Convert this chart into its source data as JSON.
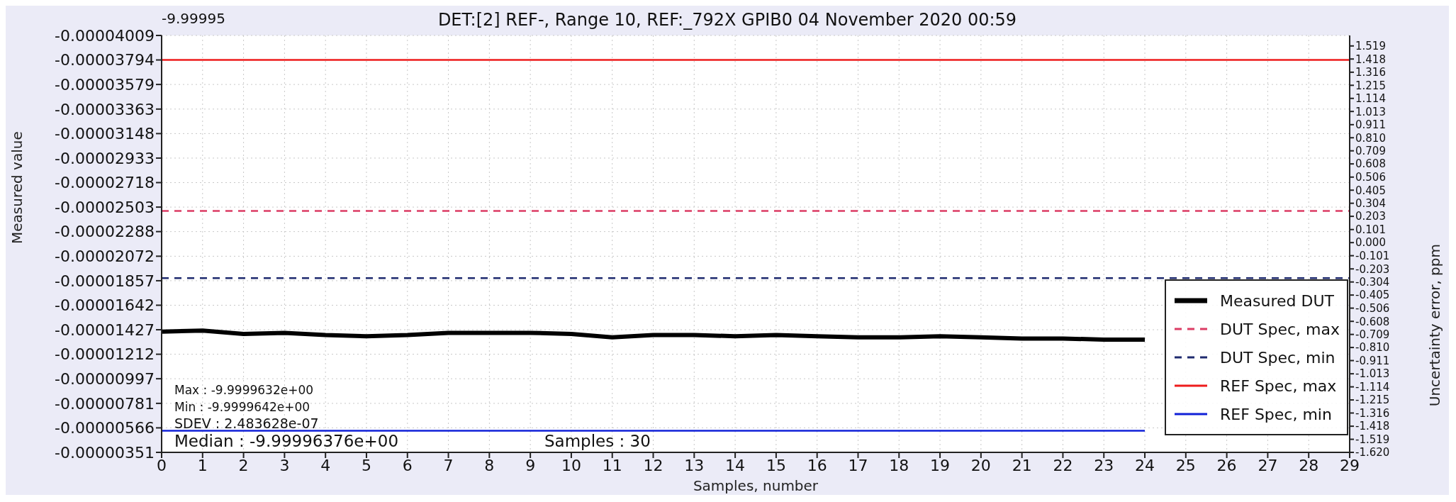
{
  "chart_data": {
    "type": "line",
    "title": "DET:[2] REF-, Range   10, REF:_792X GPIB0 04 November 2020 00:59",
    "xlabel": "Samples, number",
    "ylabel": "Measured value",
    "y2label": "Uncertainty error, ppm",
    "annotations": [
      "-9.99995",
      "Max : -9.9999632e+00",
      "Min : -9.9999642e+00",
      "SDEV : 2.483628e-07",
      "Median : -9.99996376e+00",
      "Samples : 30"
    ],
    "x": [
      0,
      1,
      2,
      3,
      4,
      5,
      6,
      7,
      8,
      9,
      10,
      11,
      12,
      13,
      14,
      15,
      16,
      17,
      18,
      19,
      20,
      21,
      22,
      23,
      24,
      25,
      26,
      27,
      28,
      29
    ],
    "series": [
      {
        "name": "Measured DUT",
        "color": "#000000",
        "line_style": "solid",
        "values": [
          -1.41e-05,
          -1.42e-05,
          -1.39e-05,
          -1.4e-05,
          -1.38e-05,
          -1.37e-05,
          -1.38e-05,
          -1.4e-05,
          -1.4e-05,
          -1.4e-05,
          -1.39e-05,
          -1.36e-05,
          -1.38e-05,
          -1.38e-05,
          -1.37e-05,
          -1.38e-05,
          -1.37e-05,
          -1.36e-05,
          -1.36e-05,
          -1.37e-05,
          -1.36e-05,
          -1.35e-05,
          -1.35e-05,
          -1.34e-05,
          -1.34e-05,
          null,
          null,
          null,
          null,
          null
        ]
      },
      {
        "name": "DUT Spec, max",
        "color": "#dc3c64",
        "line_style": "dashed",
        "values": [
          -2.47e-05,
          -2.47e-05,
          -2.47e-05,
          -2.47e-05,
          -2.47e-05,
          -2.47e-05,
          -2.47e-05,
          -2.47e-05,
          -2.47e-05,
          -2.47e-05,
          -2.47e-05,
          -2.47e-05,
          -2.47e-05,
          -2.47e-05,
          -2.47e-05,
          -2.47e-05,
          -2.47e-05,
          -2.47e-05,
          -2.47e-05,
          -2.47e-05,
          -2.47e-05,
          -2.47e-05,
          -2.47e-05,
          -2.47e-05,
          -2.47e-05,
          -2.47e-05,
          -2.47e-05,
          -2.47e-05,
          -2.47e-05,
          -2.47e-05
        ]
      },
      {
        "name": "DUT Spec, min",
        "color": "#1e2a6e",
        "line_style": "dashed",
        "values": [
          -1.88e-05,
          -1.88e-05,
          -1.88e-05,
          -1.88e-05,
          -1.88e-05,
          -1.88e-05,
          -1.88e-05,
          -1.88e-05,
          -1.88e-05,
          -1.88e-05,
          -1.88e-05,
          -1.88e-05,
          -1.88e-05,
          -1.88e-05,
          -1.88e-05,
          -1.88e-05,
          -1.88e-05,
          -1.88e-05,
          -1.88e-05,
          -1.88e-05,
          -1.88e-05,
          -1.88e-05,
          -1.88e-05,
          -1.88e-05,
          -1.88e-05,
          -1.88e-05,
          -1.88e-05,
          -1.88e-05,
          -1.88e-05,
          -1.88e-05
        ]
      },
      {
        "name": "REF Spec, max",
        "color": "#ee1c1c",
        "line_style": "solid",
        "values": [
          -3.794e-05,
          -3.794e-05,
          -3.794e-05,
          -3.794e-05,
          -3.794e-05,
          -3.794e-05,
          -3.794e-05,
          -3.794e-05,
          -3.794e-05,
          -3.794e-05,
          -3.794e-05,
          -3.794e-05,
          -3.794e-05,
          -3.794e-05,
          -3.794e-05,
          -3.794e-05,
          -3.794e-05,
          -3.794e-05,
          -3.794e-05,
          -3.794e-05,
          -3.794e-05,
          -3.794e-05,
          -3.794e-05,
          -3.794e-05,
          -3.794e-05,
          -3.794e-05,
          -3.794e-05,
          -3.794e-05,
          -3.794e-05,
          -3.794e-05
        ]
      },
      {
        "name": "REF Spec, min",
        "color": "#1020d8",
        "line_style": "solid",
        "values": [
          -5.4e-06,
          -5.4e-06,
          -5.4e-06,
          -5.4e-06,
          -5.4e-06,
          -5.4e-06,
          -5.4e-06,
          -5.4e-06,
          -5.4e-06,
          -5.4e-06,
          -5.4e-06,
          -5.4e-06,
          -5.4e-06,
          -5.4e-06,
          -5.4e-06,
          -5.4e-06,
          -5.4e-06,
          -5.4e-06,
          -5.4e-06,
          -5.4e-06,
          -5.4e-06,
          -5.4e-06,
          -5.4e-06,
          -5.4e-06,
          -5.4e-06,
          null,
          null,
          null,
          null,
          null
        ]
      }
    ],
    "xlim": [
      0,
      29
    ],
    "xticks": [
      0,
      1,
      2,
      3,
      4,
      5,
      6,
      7,
      8,
      9,
      10,
      11,
      12,
      13,
      14,
      15,
      16,
      17,
      18,
      19,
      20,
      21,
      22,
      23,
      24,
      25,
      26,
      27,
      28,
      29
    ],
    "ylim": [
      -3.51e-06,
      -4.009e-05
    ],
    "yticks": [
      {
        "value": -4.009e-05,
        "label": "-0.00004009"
      },
      {
        "value": -3.794e-05,
        "label": "-0.00003794"
      },
      {
        "value": -3.579e-05,
        "label": "-0.00003579"
      },
      {
        "value": -3.363e-05,
        "label": "-0.00003363"
      },
      {
        "value": -3.148e-05,
        "label": "-0.00003148"
      },
      {
        "value": -2.933e-05,
        "label": "-0.00002933"
      },
      {
        "value": -2.718e-05,
        "label": "-0.00002718"
      },
      {
        "value": -2.503e-05,
        "label": "-0.00002503"
      },
      {
        "value": -2.288e-05,
        "label": "-0.00002288"
      },
      {
        "value": -2.072e-05,
        "label": "-0.00002072"
      },
      {
        "value": -1.857e-05,
        "label": "-0.00001857"
      },
      {
        "value": -1.642e-05,
        "label": "-0.00001642"
      },
      {
        "value": -1.427e-05,
        "label": "-0.00001427"
      },
      {
        "value": -1.212e-05,
        "label": "-0.00001212"
      },
      {
        "value": -9.97e-06,
        "label": "-0.00000997"
      },
      {
        "value": -7.81e-06,
        "label": "-0.00000781"
      },
      {
        "value": -5.66e-06,
        "label": "-0.00000566"
      },
      {
        "value": -3.51e-06,
        "label": "-0.00000351"
      }
    ],
    "y2lim": [
      -1.62,
      1.6
    ],
    "y2ticks": [
      1.519,
      1.418,
      1.316,
      1.215,
      1.114,
      1.013,
      0.911,
      {
        "value": 0.81,
        "label": "0.810"
      },
      0.709,
      0.608,
      0.506,
      0.405,
      0.304,
      0.203,
      0.101,
      {
        "value": 0,
        "label": "0.000"
      },
      -0.101,
      -0.203,
      -0.304,
      -0.405,
      -0.506,
      -0.608,
      -0.709,
      {
        "value": -0.81,
        "label": "-0.810"
      },
      -0.911,
      -1.013,
      -1.114,
      -1.215,
      -1.316,
      -1.418,
      -1.519,
      {
        "value": -1.62,
        "label": "-1.620"
      }
    ],
    "grid": true,
    "legend": "bottom right"
  }
}
